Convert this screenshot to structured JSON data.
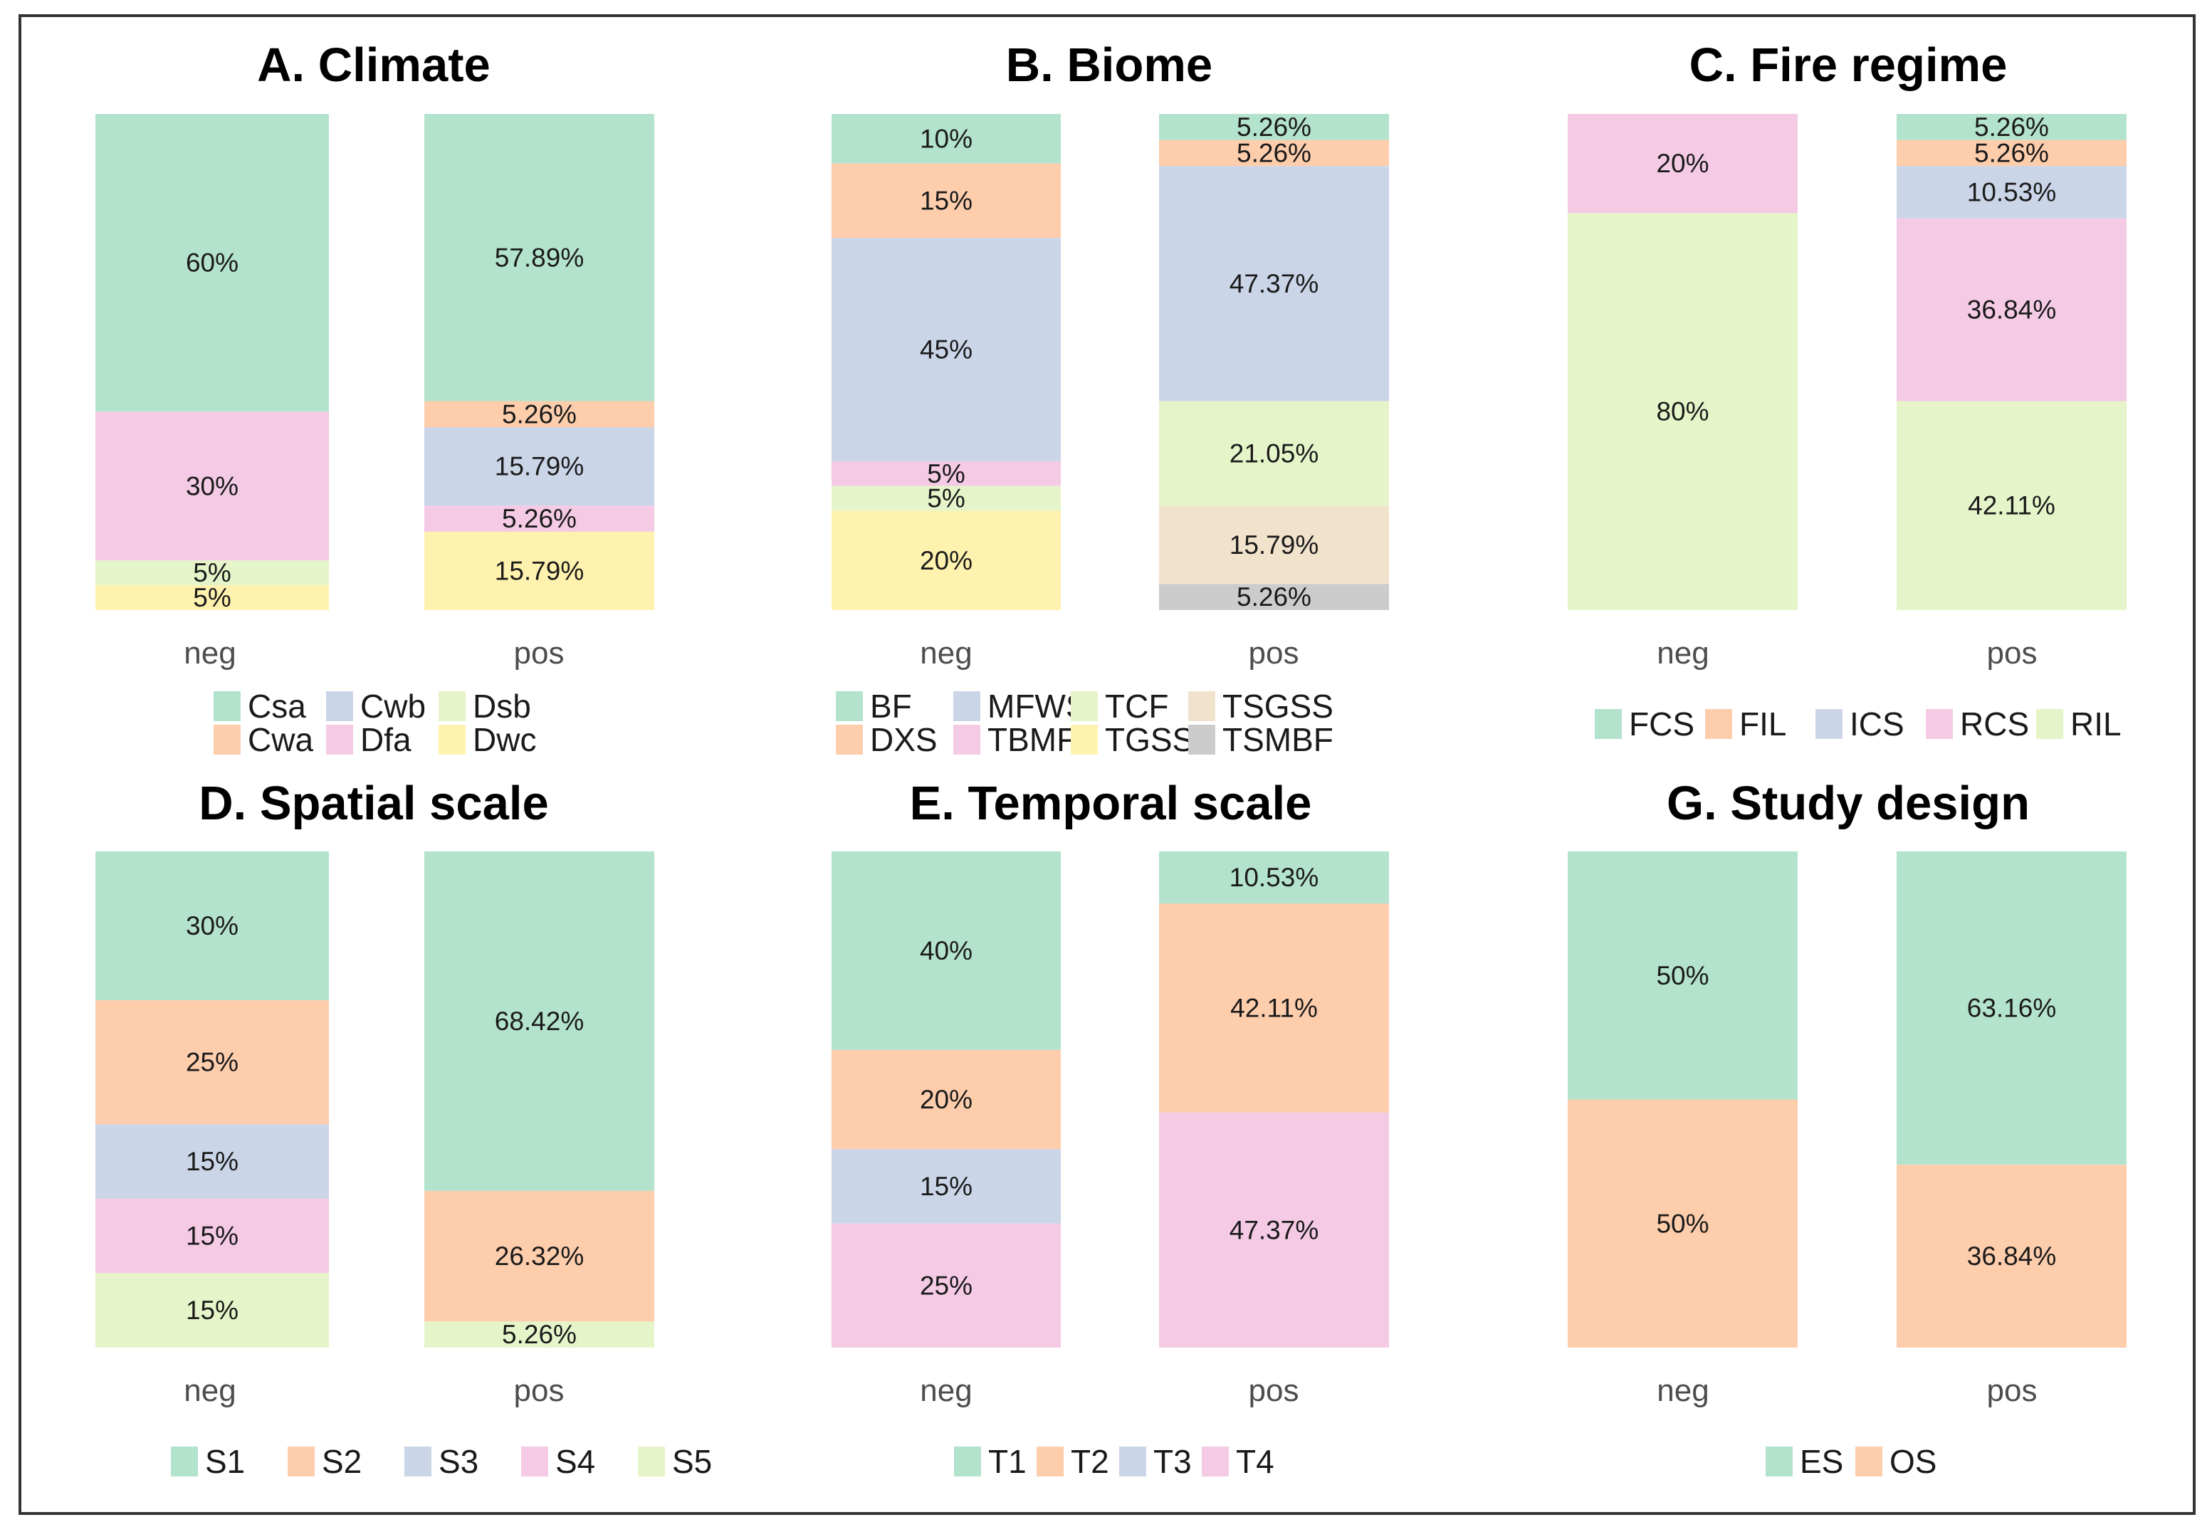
{
  "colors": {
    "green": "#b3e2cd",
    "orange": "#fdcdac",
    "blue": "#cbd5e8",
    "pink": "#f4cae4",
    "lime": "#e6f5c9",
    "yellow": "#fff2ae",
    "tan": "#f1e2cc",
    "grey": "#cccccc",
    "frame": "#333333"
  },
  "chart_data": [
    {
      "type": "bar",
      "stacked": true,
      "title": "A. Climate",
      "categories": [
        "neg",
        "pos"
      ],
      "ylim": [
        0,
        100
      ],
      "series": [
        {
          "name": "Csa",
          "color": "green",
          "values": [
            60,
            57.89
          ],
          "labels": [
            "60%",
            "57.89%"
          ]
        },
        {
          "name": "Cwa",
          "color": "orange",
          "values": [
            0,
            5.26
          ],
          "labels": [
            "",
            "5.26%"
          ]
        },
        {
          "name": "Cwb",
          "color": "blue",
          "values": [
            0,
            15.79
          ],
          "labels": [
            "",
            "15.79%"
          ]
        },
        {
          "name": "Dfa",
          "color": "pink",
          "values": [
            30,
            5.26
          ],
          "labels": [
            "30%",
            "5.26%"
          ]
        },
        {
          "name": "Dsb",
          "color": "lime",
          "values": [
            5,
            0
          ],
          "labels": [
            "5%",
            ""
          ]
        },
        {
          "name": "Dwc",
          "color": "yellow",
          "values": [
            5,
            15.79
          ],
          "labels": [
            "5%",
            "15.79%"
          ]
        }
      ],
      "legend": {
        "columns": 3,
        "placement": "bottom",
        "order": [
          "Csa",
          "Cwb",
          "Dsb",
          "Cwa",
          "Dfa",
          "Dwc"
        ]
      }
    },
    {
      "type": "bar",
      "stacked": true,
      "title": "B. Biome",
      "categories": [
        "neg",
        "pos"
      ],
      "ylim": [
        0,
        100
      ],
      "series": [
        {
          "name": "BF",
          "color": "green",
          "values": [
            10,
            5.26
          ],
          "labels": [
            "10%",
            "5.26%"
          ]
        },
        {
          "name": "DXS",
          "color": "orange",
          "values": [
            15,
            5.26
          ],
          "labels": [
            "15%",
            "5.26%"
          ]
        },
        {
          "name": "MFWS",
          "color": "blue",
          "values": [
            45,
            47.37
          ],
          "labels": [
            "45%",
            "47.37%"
          ]
        },
        {
          "name": "TBMF",
          "color": "pink",
          "values": [
            5,
            0
          ],
          "labels": [
            "5%",
            ""
          ]
        },
        {
          "name": "TCF",
          "color": "lime",
          "values": [
            5,
            21.05
          ],
          "labels": [
            "5%",
            "21.05%"
          ]
        },
        {
          "name": "TGSS",
          "color": "yellow",
          "values": [
            20,
            0
          ],
          "labels": [
            "20%",
            ""
          ]
        },
        {
          "name": "TSGSS",
          "color": "tan",
          "values": [
            0,
            15.79
          ],
          "labels": [
            "",
            "15.79%"
          ]
        },
        {
          "name": "TSMBF",
          "color": "grey",
          "values": [
            0,
            5.26
          ],
          "labels": [
            "",
            "5.26%"
          ]
        }
      ],
      "legend": {
        "columns": 4,
        "placement": "bottom",
        "order": [
          "BF",
          "MFWS",
          "TCF",
          "TSGSS",
          "DXS",
          "TBMF",
          "TGSS",
          "TSMBF"
        ]
      }
    },
    {
      "type": "bar",
      "stacked": true,
      "title": "C. Fire regime",
      "categories": [
        "neg",
        "pos"
      ],
      "ylim": [
        0,
        100
      ],
      "series": [
        {
          "name": "FCS",
          "color": "green",
          "values": [
            0,
            5.26
          ],
          "labels": [
            "",
            "5.26%"
          ]
        },
        {
          "name": "FIL",
          "color": "orange",
          "values": [
            0,
            5.26
          ],
          "labels": [
            "",
            "5.26%"
          ]
        },
        {
          "name": "ICS",
          "color": "blue",
          "values": [
            0,
            10.53
          ],
          "labels": [
            "",
            "10.53%"
          ]
        },
        {
          "name": "RCS",
          "color": "pink",
          "values": [
            20,
            36.84
          ],
          "labels": [
            "20%",
            "36.84%"
          ]
        },
        {
          "name": "RIL",
          "color": "lime",
          "values": [
            80,
            42.11
          ],
          "labels": [
            "80%",
            "42.11%"
          ]
        }
      ],
      "legend": {
        "columns": 5,
        "placement": "bottom",
        "order": [
          "FCS",
          "FIL",
          "ICS",
          "RCS",
          "RIL"
        ]
      }
    },
    {
      "type": "bar",
      "stacked": true,
      "title": "D. Spatial scale",
      "categories": [
        "neg",
        "pos"
      ],
      "ylim": [
        0,
        100
      ],
      "series": [
        {
          "name": "S1",
          "color": "green",
          "values": [
            30,
            68.42
          ],
          "labels": [
            "30%",
            "68.42%"
          ]
        },
        {
          "name": "S2",
          "color": "orange",
          "values": [
            25,
            26.32
          ],
          "labels": [
            "25%",
            "26.32%"
          ]
        },
        {
          "name": "S3",
          "color": "blue",
          "values": [
            15,
            0
          ],
          "labels": [
            "15%",
            ""
          ]
        },
        {
          "name": "S4",
          "color": "pink",
          "values": [
            15,
            0
          ],
          "labels": [
            "15%",
            ""
          ]
        },
        {
          "name": "S5",
          "color": "lime",
          "values": [
            15,
            5.26
          ],
          "labels": [
            "15%",
            "5.26%"
          ]
        }
      ],
      "legend": {
        "columns": 5,
        "placement": "bottom",
        "order": [
          "S1",
          "S2",
          "S3",
          "S4",
          "S5"
        ]
      }
    },
    {
      "type": "bar",
      "stacked": true,
      "title": "E. Temporal scale",
      "categories": [
        "neg",
        "pos"
      ],
      "ylim": [
        0,
        100
      ],
      "series": [
        {
          "name": "T1",
          "color": "green",
          "values": [
            40,
            10.53
          ],
          "labels": [
            "40%",
            "10.53%"
          ]
        },
        {
          "name": "T2",
          "color": "orange",
          "values": [
            20,
            42.11
          ],
          "labels": [
            "20%",
            "42.11%"
          ]
        },
        {
          "name": "T3",
          "color": "blue",
          "values": [
            15,
            0
          ],
          "labels": [
            "15%",
            ""
          ]
        },
        {
          "name": "T4",
          "color": "pink",
          "values": [
            25,
            47.37
          ],
          "labels": [
            "25%",
            "47.37%"
          ]
        }
      ],
      "legend": {
        "columns": 4,
        "placement": "bottom",
        "order": [
          "T1",
          "T2",
          "T3",
          "T4"
        ]
      }
    },
    {
      "type": "bar",
      "stacked": true,
      "title": "G. Study design",
      "categories": [
        "neg",
        "pos"
      ],
      "ylim": [
        0,
        100
      ],
      "series": [
        {
          "name": "ES",
          "color": "green",
          "values": [
            50,
            63.16
          ],
          "labels": [
            "50%",
            "63.16%"
          ]
        },
        {
          "name": "OS",
          "color": "orange",
          "values": [
            50,
            36.84
          ],
          "labels": [
            "50%",
            "36.84%"
          ]
        }
      ],
      "legend": {
        "columns": 2,
        "placement": "bottom",
        "order": [
          "ES",
          "OS"
        ]
      }
    }
  ]
}
